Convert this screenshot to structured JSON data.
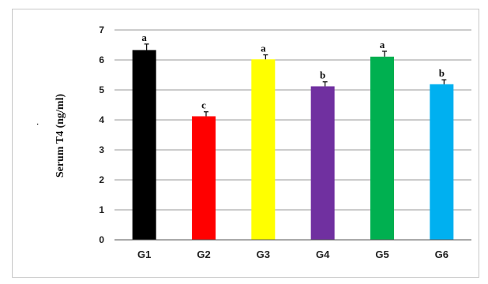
{
  "chart_data": {
    "type": "bar",
    "title": "",
    "xlabel": "",
    "ylabel": "Serum T4 (ng/ml)",
    "ylim": [
      0,
      7
    ],
    "yticks": [
      0,
      1,
      2,
      3,
      4,
      5,
      6,
      7
    ],
    "grid": true,
    "legend": "none",
    "categories": [
      "G1",
      "G2",
      "G3",
      "G4",
      "G5",
      "G6"
    ],
    "values": [
      6.33,
      4.12,
      6.02,
      5.12,
      6.11,
      5.19
    ],
    "errors": [
      0.2,
      0.15,
      0.15,
      0.15,
      0.18,
      0.15
    ],
    "significance_labels": [
      "a",
      "c",
      "a",
      "b",
      "a",
      "b"
    ],
    "colors": [
      "#000000",
      "#ff0000",
      "#ffff00",
      "#7030a0",
      "#00b050",
      "#00b0f0"
    ],
    "stray_mark": "."
  }
}
